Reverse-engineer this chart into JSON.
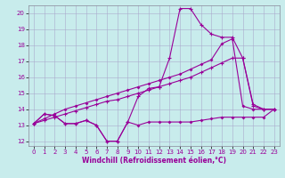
{
  "xlabel": "Windchill (Refroidissement éolien,°C)",
  "background_color": "#c8ecec",
  "grid_color": "#aaaacc",
  "line_color": "#990099",
  "xlim": [
    -0.5,
    23.5
  ],
  "ylim": [
    11.7,
    20.5
  ],
  "xticks": [
    0,
    1,
    2,
    3,
    4,
    5,
    6,
    7,
    8,
    9,
    10,
    11,
    12,
    13,
    14,
    15,
    16,
    17,
    18,
    19,
    20,
    21,
    22,
    23
  ],
  "yticks": [
    12,
    13,
    14,
    15,
    16,
    17,
    18,
    19,
    20
  ],
  "line1_x": [
    0,
    1,
    2,
    3,
    4,
    5,
    6,
    7,
    8,
    9,
    10,
    11,
    12,
    13,
    14,
    15,
    16,
    17,
    18,
    19,
    20,
    21,
    22,
    23
  ],
  "line1_y": [
    13.1,
    13.7,
    13.6,
    13.1,
    13.1,
    13.3,
    13.0,
    12.0,
    12.0,
    13.2,
    13.0,
    13.2,
    13.2,
    13.2,
    13.2,
    13.2,
    13.3,
    13.4,
    13.5,
    13.5,
    13.5,
    13.5,
    13.5,
    14.0
  ],
  "line2_x": [
    0,
    1,
    2,
    3,
    4,
    5,
    6,
    7,
    8,
    9,
    10,
    11,
    12,
    13,
    14,
    15,
    16,
    17,
    18,
    19,
    20,
    21,
    22,
    23
  ],
  "line2_y": [
    13.1,
    13.7,
    13.6,
    13.1,
    13.1,
    13.3,
    13.0,
    12.0,
    12.0,
    13.2,
    14.8,
    15.3,
    15.4,
    17.2,
    20.3,
    20.3,
    19.3,
    18.7,
    18.5,
    18.5,
    17.2,
    14.2,
    14.0,
    14.0
  ],
  "line3_x": [
    0,
    1,
    2,
    3,
    4,
    5,
    6,
    7,
    8,
    9,
    10,
    11,
    12,
    13,
    14,
    15,
    16,
    17,
    18,
    19,
    20,
    21,
    22,
    23
  ],
  "line3_y": [
    13.1,
    13.3,
    13.5,
    13.7,
    13.9,
    14.1,
    14.3,
    14.5,
    14.6,
    14.8,
    15.0,
    15.2,
    15.4,
    15.6,
    15.8,
    16.0,
    16.3,
    16.6,
    16.9,
    17.2,
    17.2,
    14.3,
    14.0,
    14.0
  ],
  "line4_x": [
    0,
    1,
    2,
    3,
    4,
    5,
    6,
    7,
    8,
    9,
    10,
    11,
    12,
    13,
    14,
    15,
    16,
    17,
    18,
    19,
    20,
    21,
    22,
    23
  ],
  "line4_y": [
    13.1,
    13.4,
    13.7,
    14.0,
    14.2,
    14.4,
    14.6,
    14.8,
    15.0,
    15.2,
    15.4,
    15.6,
    15.8,
    16.0,
    16.2,
    16.5,
    16.8,
    17.1,
    18.1,
    18.4,
    14.2,
    14.0,
    14.0,
    14.0
  ]
}
